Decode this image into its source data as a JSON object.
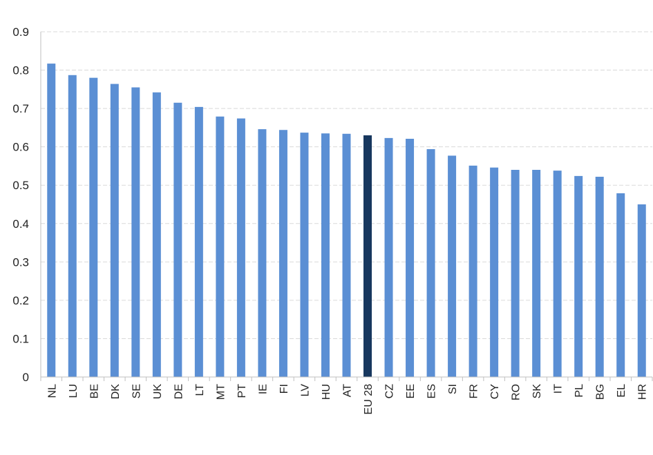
{
  "chart_data": {
    "type": "bar",
    "categories": [
      "NL",
      "LU",
      "BE",
      "DK",
      "SE",
      "UK",
      "DE",
      "LT",
      "MT",
      "PT",
      "IE",
      "FI",
      "LV",
      "HU",
      "AT",
      "EU 28",
      "CZ",
      "EE",
      "ES",
      "SI",
      "FR",
      "CY",
      "RO",
      "SK",
      "IT",
      "PL",
      "BG",
      "EL",
      "HR"
    ],
    "values": [
      0.817,
      0.787,
      0.78,
      0.764,
      0.755,
      0.742,
      0.715,
      0.704,
      0.679,
      0.674,
      0.646,
      0.644,
      0.637,
      0.635,
      0.634,
      0.63,
      0.623,
      0.621,
      0.594,
      0.577,
      0.551,
      0.546,
      0.54,
      0.54,
      0.538,
      0.524,
      0.522,
      0.479,
      0.45
    ],
    "highlight": "EU 28",
    "ylim": [
      0,
      0.9
    ],
    "yticks": [
      "0",
      "0.1",
      "0.2",
      "0.3",
      "0.4",
      "0.5",
      "0.6",
      "0.7",
      "0.8",
      "0.9"
    ],
    "ytick_values": [
      0,
      0.1,
      0.2,
      0.3,
      0.4,
      0.5,
      0.6,
      0.7,
      0.8,
      0.9
    ],
    "grid": true,
    "legend": "none",
    "colors": {
      "bar": "#5b8fd4",
      "highlight": "#17375e",
      "grid": "#d9d9d9",
      "axis": "#bfbfbf"
    }
  }
}
